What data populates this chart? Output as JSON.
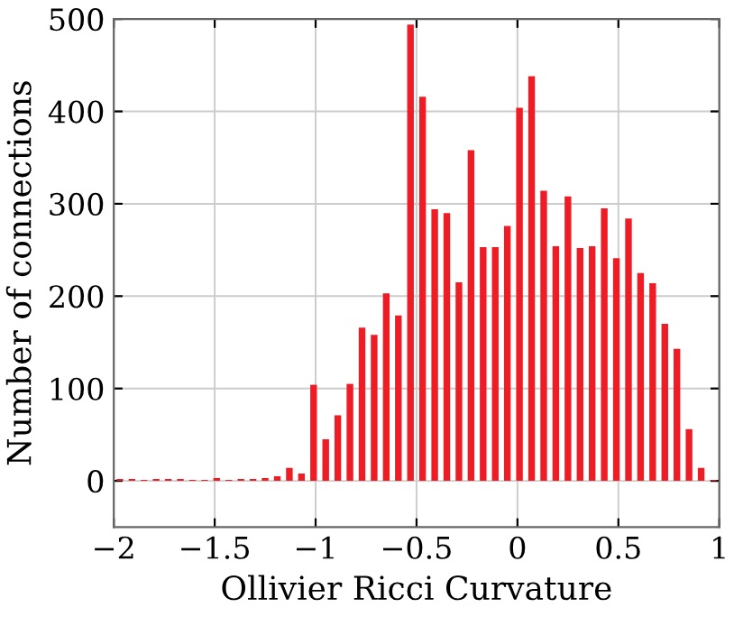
{
  "chart_data": {
    "type": "histogram",
    "xlabel": "Ollivier Ricci Curvature",
    "ylabel": "Number of connections",
    "bins": [
      -2,
      -1.94,
      -1.88,
      -1.82,
      -1.76,
      -1.7,
      -1.64,
      -1.58,
      -1.52,
      -1.46,
      -1.4,
      -1.34,
      -1.28,
      -1.22,
      -1.16,
      -1.1,
      -1.04,
      -0.98,
      -0.92,
      -0.86,
      -0.8,
      -0.74,
      -0.68,
      -0.62,
      -0.56,
      -0.5,
      -0.44,
      -0.38,
      -0.32,
      -0.26,
      -0.2,
      -0.14,
      -0.08,
      -0.02,
      0.04,
      0.1,
      0.16,
      0.22,
      0.28,
      0.34,
      0.4,
      0.46,
      0.52,
      0.58,
      0.64,
      0.7,
      0.76,
      0.82,
      0.88,
      0.94,
      1
    ],
    "values": [
      2,
      2,
      1,
      2,
      2,
      2,
      1,
      1,
      3,
      1,
      2,
      2,
      3,
      5,
      14,
      8,
      104,
      45,
      71,
      105,
      166,
      158,
      203,
      179,
      494,
      416,
      294,
      290,
      215,
      358,
      253,
      253,
      276,
      404,
      438,
      314,
      254,
      308,
      252,
      254,
      295,
      241,
      284,
      225,
      214,
      170,
      143,
      56,
      14,
      1
    ],
    "color": "#ee1c25",
    "xlim": [
      -2,
      1
    ],
    "xticks": [
      {
        "value": -2,
        "label": "−2"
      },
      {
        "value": -1.5,
        "label": "−1.5"
      },
      {
        "value": -1,
        "label": "−1"
      },
      {
        "value": -0.5,
        "label": "−0.5"
      },
      0,
      0.5,
      1
    ],
    "ylim": [
      -50,
      500
    ],
    "yticks": [
      0,
      100,
      200,
      300,
      400,
      500
    ],
    "grid": true
  }
}
